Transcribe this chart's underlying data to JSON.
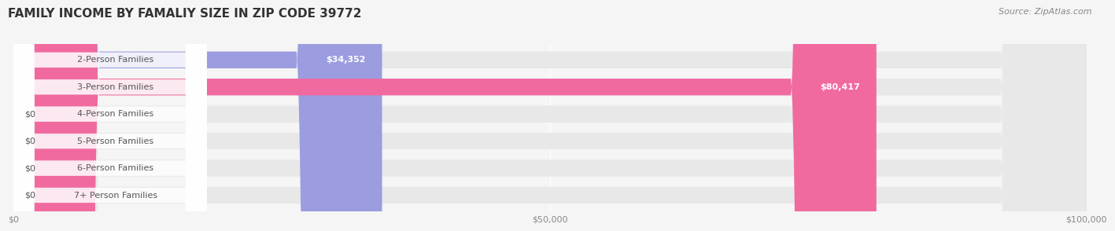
{
  "title": "FAMILY INCOME BY FAMALIY SIZE IN ZIP CODE 39772",
  "source": "Source: ZipAtlas.com",
  "categories": [
    "2-Person Families",
    "3-Person Families",
    "4-Person Families",
    "5-Person Families",
    "6-Person Families",
    "7+ Person Families"
  ],
  "values": [
    34352,
    80417,
    0,
    0,
    0,
    0
  ],
  "bar_colors": [
    "#9b9de0",
    "#f06aa0",
    "#f5c98a",
    "#f0a090",
    "#a0b8e8",
    "#c8a8d8"
  ],
  "label_colors": [
    "#9b9de0",
    "#f06aa0",
    "#f5c98a",
    "#f0a090",
    "#a0b8e8",
    "#c8a8d8"
  ],
  "value_labels": [
    "$34,352",
    "$80,417",
    "$0",
    "$0",
    "$0",
    "$0"
  ],
  "xlim": [
    0,
    100000
  ],
  "xticks": [
    0,
    50000,
    100000
  ],
  "xtick_labels": [
    "$0",
    "$50,000",
    "$100,000"
  ],
  "bg_color": "#f5f5f5",
  "bar_bg_color": "#e8e8e8",
  "title_fontsize": 11,
  "source_fontsize": 8,
  "label_fontsize": 8,
  "value_fontsize": 8
}
